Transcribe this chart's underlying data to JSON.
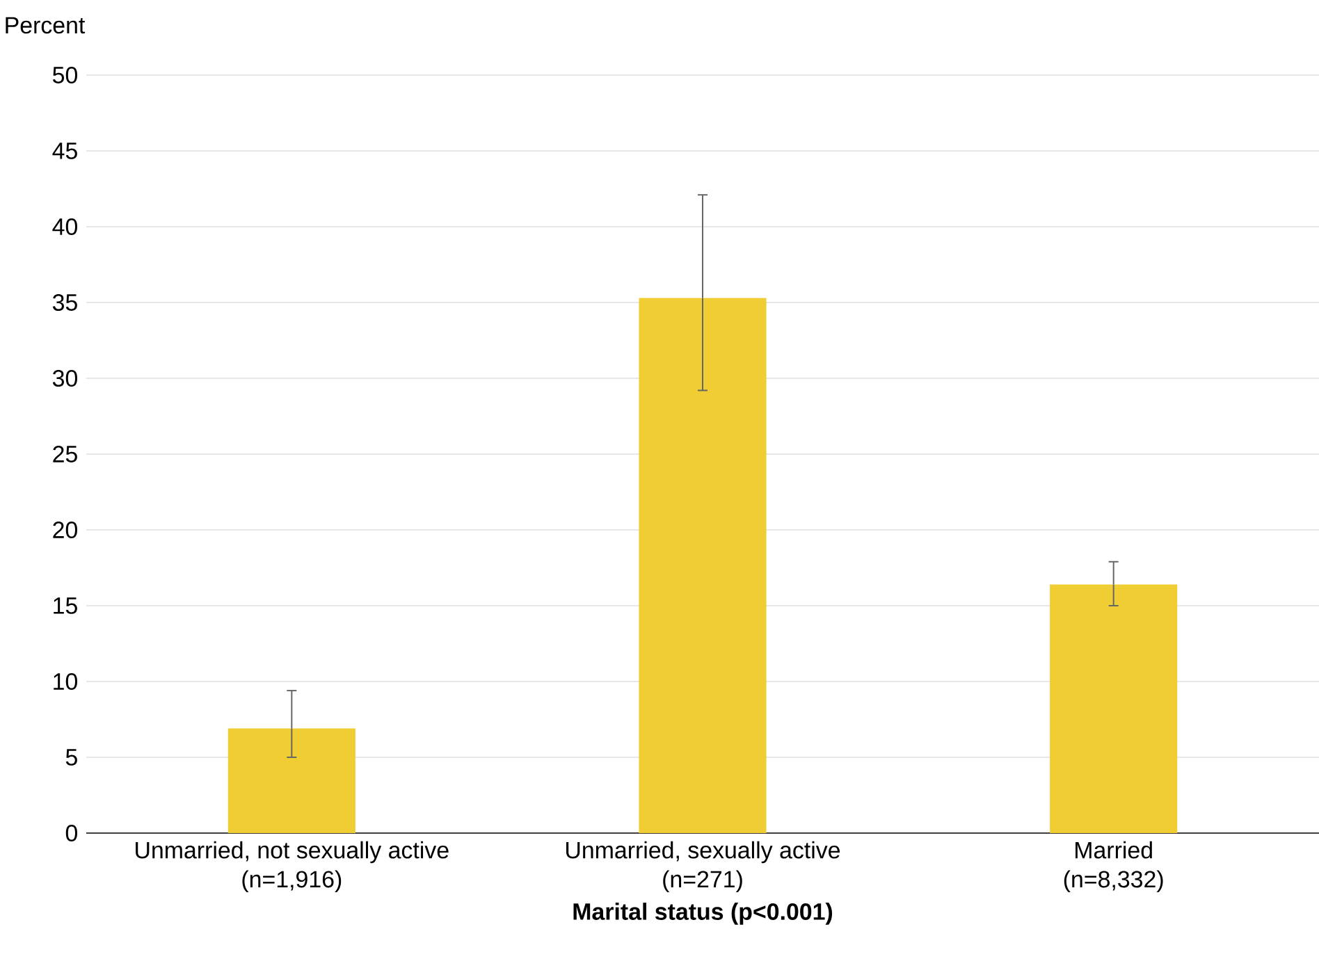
{
  "chart_data": {
    "type": "bar",
    "ylabel": "Percent",
    "xlabel": "Marital status (p<0.001)",
    "categories": [
      "Unmarried, not sexually active (n=1,916)",
      "Unmarried, sexually active (n=271)",
      "Married (n=8,332)"
    ],
    "values": [
      6.9,
      35.3,
      16.4
    ],
    "errors": [
      [
        5.0,
        9.4
      ],
      [
        29.2,
        42.1
      ],
      [
        15.0,
        17.9
      ]
    ],
    "color": "#f0cd32",
    "ylim": [
      0,
      50
    ],
    "yticks": [
      0,
      5,
      10,
      15,
      20,
      25,
      30,
      35,
      40,
      45,
      50
    ],
    "grid": "y"
  }
}
